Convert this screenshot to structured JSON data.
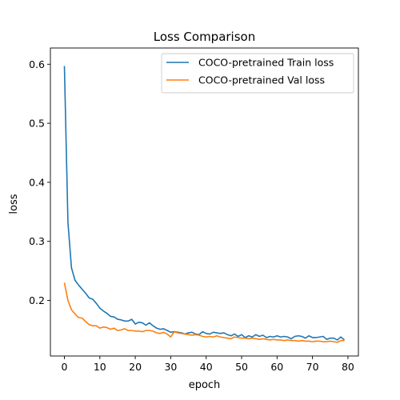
{
  "chart_data": {
    "type": "line",
    "title": "Loss Comparison",
    "xlabel": "epoch",
    "ylabel": "loss",
    "xlim": [
      -3.95,
      82.95
    ],
    "ylim": [
      0.1058,
      0.6275
    ],
    "xticks": [
      0,
      10,
      20,
      30,
      40,
      50,
      60,
      70,
      80
    ],
    "yticks": [
      0.2,
      0.3,
      0.4,
      0.5,
      0.6
    ],
    "ytick_labels": [
      "0.2",
      "0.3",
      "0.4",
      "0.5",
      "0.6"
    ],
    "grid": false,
    "legend_position": "upper right",
    "series": [
      {
        "name": "COCO-pretrained Train loss",
        "color": "#1f77b4",
        "values": [
          0.597,
          0.332,
          0.255,
          0.234,
          0.226,
          0.219,
          0.212,
          0.204,
          0.202,
          0.195,
          0.187,
          0.182,
          0.178,
          0.173,
          0.172,
          0.168,
          0.167,
          0.165,
          0.165,
          0.168,
          0.16,
          0.163,
          0.162,
          0.158,
          0.162,
          0.157,
          0.153,
          0.151,
          0.152,
          0.149,
          0.146,
          0.147,
          0.146,
          0.145,
          0.143,
          0.145,
          0.146,
          0.143,
          0.142,
          0.147,
          0.144,
          0.143,
          0.146,
          0.145,
          0.144,
          0.145,
          0.142,
          0.14,
          0.143,
          0.139,
          0.142,
          0.137,
          0.14,
          0.138,
          0.142,
          0.139,
          0.141,
          0.137,
          0.139,
          0.138,
          0.14,
          0.138,
          0.139,
          0.138,
          0.135,
          0.139,
          0.14,
          0.139,
          0.136,
          0.14,
          0.137,
          0.137,
          0.138,
          0.139,
          0.134,
          0.136,
          0.136,
          0.133,
          0.138,
          0.133
        ]
      },
      {
        "name": "COCO-pretrained Val loss",
        "color": "#ff7f0e",
        "values": [
          0.23,
          0.2,
          0.184,
          0.177,
          0.171,
          0.17,
          0.164,
          0.159,
          0.157,
          0.157,
          0.153,
          0.155,
          0.154,
          0.151,
          0.153,
          0.149,
          0.15,
          0.152,
          0.149,
          0.149,
          0.148,
          0.148,
          0.147,
          0.149,
          0.149,
          0.148,
          0.145,
          0.144,
          0.146,
          0.143,
          0.138,
          0.147,
          0.145,
          0.144,
          0.143,
          0.142,
          0.141,
          0.142,
          0.141,
          0.139,
          0.138,
          0.139,
          0.138,
          0.14,
          0.138,
          0.137,
          0.136,
          0.135,
          0.138,
          0.137,
          0.136,
          0.136,
          0.135,
          0.136,
          0.135,
          0.134,
          0.135,
          0.134,
          0.133,
          0.134,
          0.133,
          0.133,
          0.132,
          0.133,
          0.132,
          0.132,
          0.131,
          0.132,
          0.131,
          0.131,
          0.13,
          0.131,
          0.131,
          0.13,
          0.13,
          0.131,
          0.13,
          0.129,
          0.132,
          0.132
        ]
      }
    ]
  }
}
